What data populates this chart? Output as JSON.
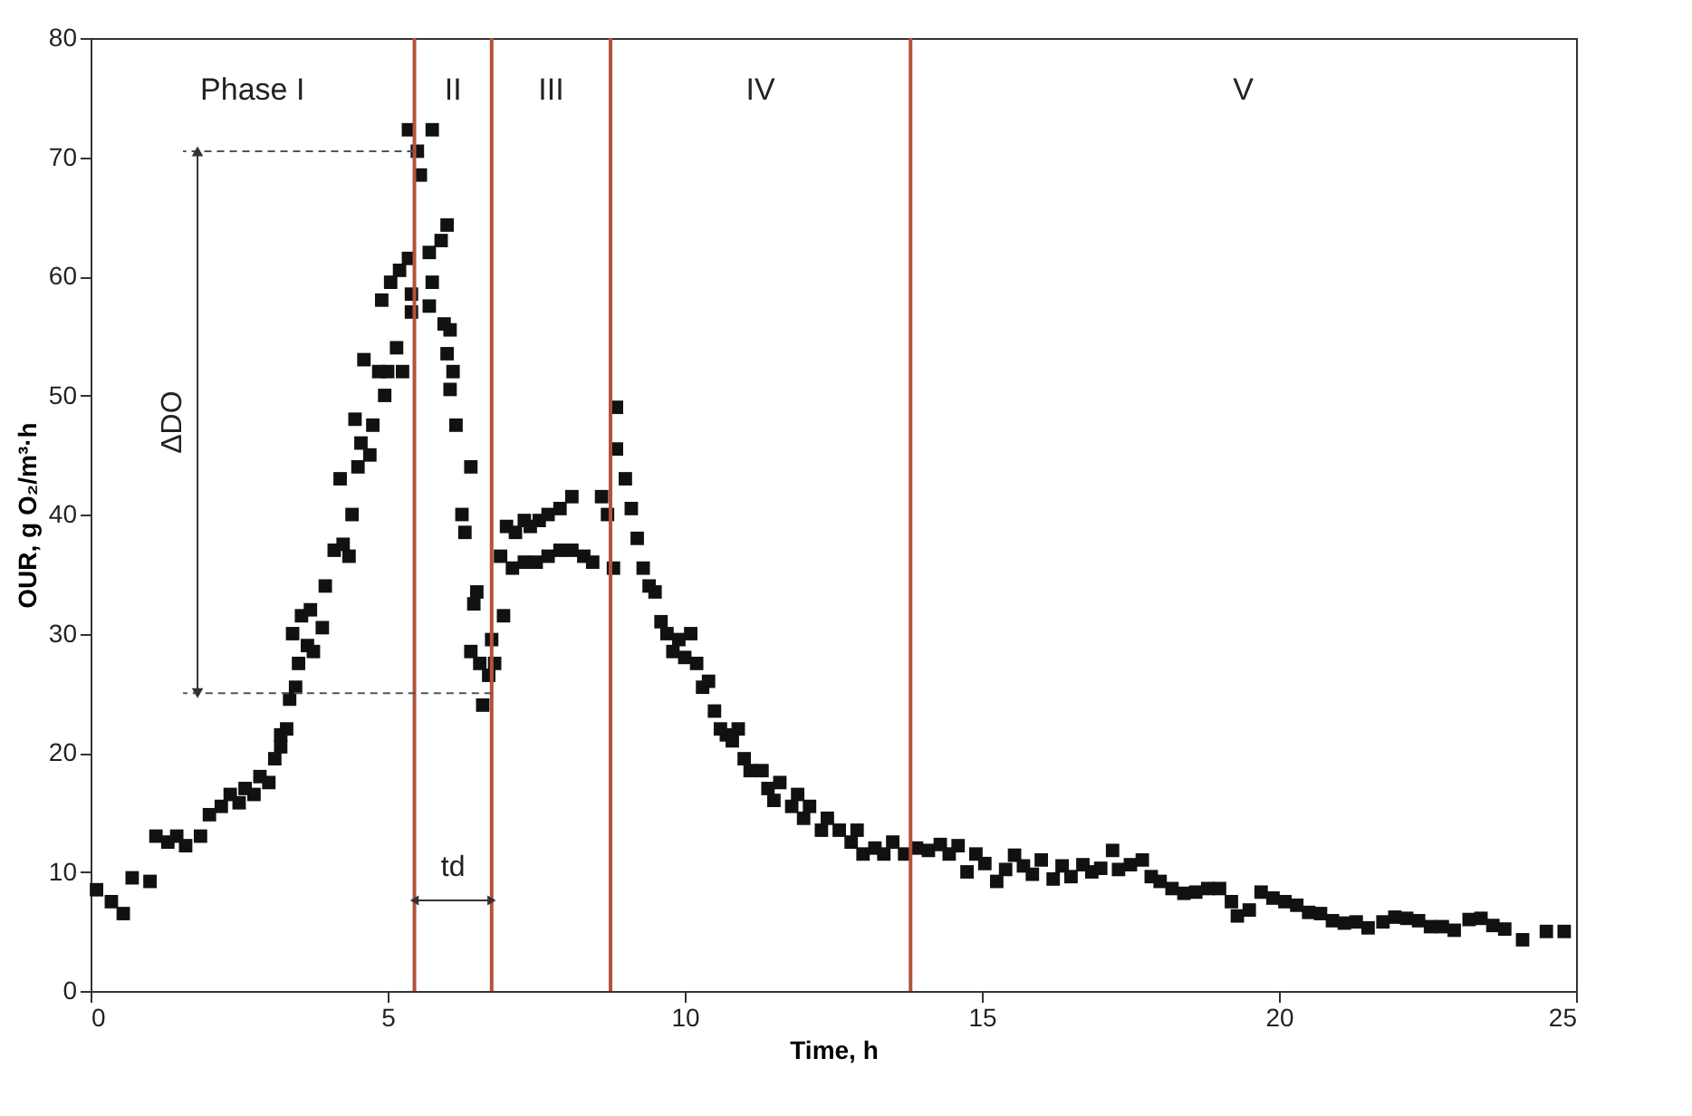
{
  "chart_data": {
    "type": "scatter",
    "xlabel": "Time, h",
    "ylabel": "OUR, g O₂/m³·h",
    "xlim": [
      0,
      25
    ],
    "xticks": [
      0,
      5,
      10,
      15,
      20,
      25
    ],
    "ylim": [
      0,
      80
    ],
    "yticks": [
      0,
      10,
      20,
      30,
      40,
      50,
      60,
      70,
      80
    ],
    "grid": false,
    "marker": "square",
    "legend": false,
    "series": [
      {
        "color": "#111111",
        "x": [
          0.1,
          0.35,
          0.55,
          0.7,
          1.0,
          1.1,
          1.3,
          1.45,
          1.6,
          1.85,
          2.0,
          2.2,
          2.35,
          2.5,
          2.6,
          2.75,
          2.85,
          3.0,
          3.1,
          3.2,
          3.3,
          3.35,
          3.45,
          3.2,
          3.5,
          3.4,
          3.55,
          3.65,
          3.75,
          3.9,
          3.7,
          3.95,
          4.1,
          4.25,
          4.35,
          4.4,
          4.2,
          4.5,
          4.55,
          4.45,
          4.7,
          4.75,
          4.85,
          4.6,
          4.95,
          5.0,
          5.15,
          5.25,
          4.9,
          5.05,
          5.2,
          5.35,
          5.4,
          5.4,
          5.35,
          5.5,
          5.55,
          5.75,
          5.7,
          5.9,
          6.0,
          5.7,
          5.75,
          5.95,
          6.05,
          6.0,
          6.05,
          6.1,
          6.15,
          6.4,
          6.25,
          6.3,
          6.45,
          6.5,
          6.4,
          6.55,
          6.7,
          6.6,
          6.8,
          6.75,
          6.95,
          6.9,
          7.0,
          7.15,
          7.3,
          7.4,
          7.55,
          7.7,
          7.9,
          8.1,
          7.1,
          7.3,
          7.5,
          7.7,
          7.9,
          8.1,
          8.3,
          8.45,
          8.6,
          8.7,
          8.8,
          8.85,
          8.85,
          9.0,
          9.1,
          9.2,
          9.3,
          9.4,
          9.5,
          9.6,
          9.7,
          9.8,
          9.9,
          10.0,
          10.1,
          10.2,
          10.3,
          10.4,
          10.5,
          10.6,
          10.7,
          10.8,
          10.9,
          11.0,
          11.1,
          11.3,
          11.4,
          11.5,
          11.6,
          11.8,
          11.9,
          12.0,
          12.1,
          12.3,
          12.4,
          12.6,
          12.8,
          12.9,
          13.0,
          13.2,
          13.35,
          13.5,
          13.7,
          13.9,
          14.1,
          14.3,
          14.45,
          14.6,
          14.75,
          14.9,
          15.05,
          15.25,
          15.4,
          15.55,
          15.7,
          15.85,
          16.0,
          16.2,
          16.35,
          16.5,
          16.7,
          16.85,
          17.0,
          17.2,
          17.3,
          17.5,
          17.7,
          17.85,
          18.0,
          18.2,
          18.4,
          18.6,
          18.8,
          19.0,
          19.2,
          19.3,
          19.5,
          19.7,
          19.9,
          20.1,
          20.3,
          20.5,
          20.7,
          20.9,
          21.1,
          21.3,
          21.5,
          21.75,
          21.95,
          22.15,
          22.35,
          22.55,
          22.75,
          22.95,
          23.2,
          23.4,
          23.6,
          23.8,
          24.1,
          24.5,
          24.8
        ],
        "values": [
          8.5,
          7.5,
          6.5,
          9.5,
          9.2,
          13,
          12.5,
          13,
          12.2,
          13,
          14.8,
          15.5,
          16.5,
          15.8,
          17,
          16.5,
          18,
          17.5,
          19.5,
          20.5,
          22,
          24.5,
          25.5,
          21.5,
          27.5,
          30,
          31.5,
          29,
          28.5,
          30.5,
          32,
          34,
          37,
          37.5,
          36.5,
          40,
          43,
          44,
          46,
          48,
          45,
          47.5,
          52,
          53,
          50,
          52,
          54,
          52,
          58,
          59.5,
          60.5,
          61.5,
          57,
          58.5,
          72.3,
          70.5,
          68.5,
          72.3,
          62,
          63,
          64.3,
          57.5,
          59.5,
          56,
          55.5,
          53.5,
          50.5,
          52,
          47.5,
          44,
          40,
          38.5,
          32.5,
          33.5,
          28.5,
          27.5,
          26.5,
          24,
          27.5,
          29.5,
          31.5,
          36.5,
          39,
          38.5,
          39.5,
          39,
          39.5,
          40,
          40.5,
          41.5,
          35.5,
          36,
          36,
          36.5,
          37,
          37,
          36.5,
          36,
          41.5,
          40,
          35.5,
          49,
          45.5,
          43,
          40.5,
          38,
          35.5,
          34,
          33.5,
          31,
          30,
          28.5,
          29.5,
          28,
          30,
          27.5,
          25.5,
          26,
          23.5,
          22,
          21.5,
          21,
          22,
          19.5,
          18.5,
          18.5,
          17,
          16,
          17.5,
          15.5,
          16.5,
          14.5,
          15.5,
          13.5,
          14.5,
          13.5,
          12.5,
          13.5,
          11.5,
          12,
          11.5,
          12.5,
          11.5,
          12,
          11.8,
          12.3,
          11.5,
          12.2,
          10,
          11.5,
          10.7,
          9.2,
          10.2,
          11.4,
          10.5,
          9.8,
          11,
          9.4,
          10.5,
          9.6,
          10.6,
          10,
          10.3,
          11.8,
          10.2,
          10.6,
          11,
          9.6,
          9.2,
          8.6,
          8.2,
          8.3,
          8.6,
          8.6,
          7.5,
          6.3,
          6.8,
          8.3,
          7.8,
          7.5,
          7.2,
          6.6,
          6.5,
          5.9,
          5.7,
          5.8,
          5.3,
          5.8,
          6.2,
          6.1,
          5.9,
          5.4,
          5.4,
          5.1,
          6.0,
          6.1,
          5.5,
          5.2,
          4.3,
          5.0,
          5.0
        ]
      }
    ],
    "ref_lines": [
      {
        "axis": "x",
        "value": 5.45,
        "color": "#b5523b"
      },
      {
        "axis": "x",
        "value": 6.75,
        "color": "#b5523b"
      },
      {
        "axis": "x",
        "value": 8.75,
        "color": "#b5523b"
      },
      {
        "axis": "x",
        "value": 13.8,
        "color": "#b5523b"
      },
      {
        "axis": "y",
        "value": 70.5,
        "color": "#555555",
        "line_style": "dashed"
      },
      {
        "axis": "y",
        "value": 25,
        "color": "#555555",
        "line_style": "dashed"
      }
    ],
    "annotations": [
      "Phase I",
      "II",
      "III",
      "IV",
      "V",
      "ΔDO",
      "td"
    ]
  }
}
